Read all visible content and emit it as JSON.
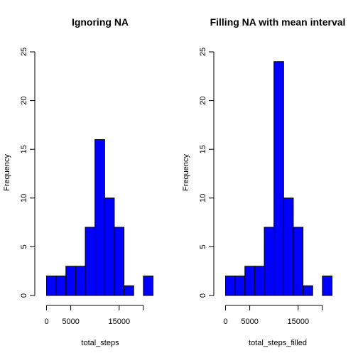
{
  "colors": {
    "bar_fill": "#0000ff",
    "bar_border": "#000000",
    "background": "#ffffff"
  },
  "chart_data": [
    {
      "type": "bar",
      "title": "Ignoring NA",
      "xlabel": "total_steps",
      "ylabel": "Frequency",
      "bin_edges": [
        0,
        2000,
        4000,
        6000,
        8000,
        10000,
        12000,
        14000,
        16000,
        18000,
        20000,
        22000
      ],
      "values": [
        2,
        2,
        3,
        3,
        7,
        16,
        10,
        7,
        1,
        0,
        2
      ],
      "xlim": [
        0,
        22000
      ],
      "ylim": [
        0,
        25
      ],
      "xticks": [
        0,
        5000,
        15000,
        20000
      ],
      "xtick_labels": [
        "0",
        "5000",
        "15000",
        ""
      ],
      "yticks": [
        0,
        5,
        10,
        15,
        20,
        25
      ],
      "ytick_labels": [
        "0",
        "5",
        "10",
        "15",
        "20",
        "25"
      ],
      "grid": false
    },
    {
      "type": "bar",
      "title": "Filling NA with mean interval",
      "xlabel": "total_steps_filled",
      "ylabel": "Frequency",
      "bin_edges": [
        0,
        2000,
        4000,
        6000,
        8000,
        10000,
        12000,
        14000,
        16000,
        18000,
        20000,
        22000
      ],
      "values": [
        2,
        2,
        3,
        3,
        7,
        24,
        10,
        7,
        1,
        0,
        2
      ],
      "xlim": [
        0,
        22000
      ],
      "ylim": [
        0,
        25
      ],
      "xticks": [
        0,
        5000,
        15000,
        20000
      ],
      "xtick_labels": [
        "0",
        "5000",
        "15000",
        ""
      ],
      "yticks": [
        0,
        5,
        10,
        15,
        20,
        25
      ],
      "ytick_labels": [
        "0",
        "5",
        "10",
        "15",
        "20",
        "25"
      ],
      "grid": false
    }
  ]
}
